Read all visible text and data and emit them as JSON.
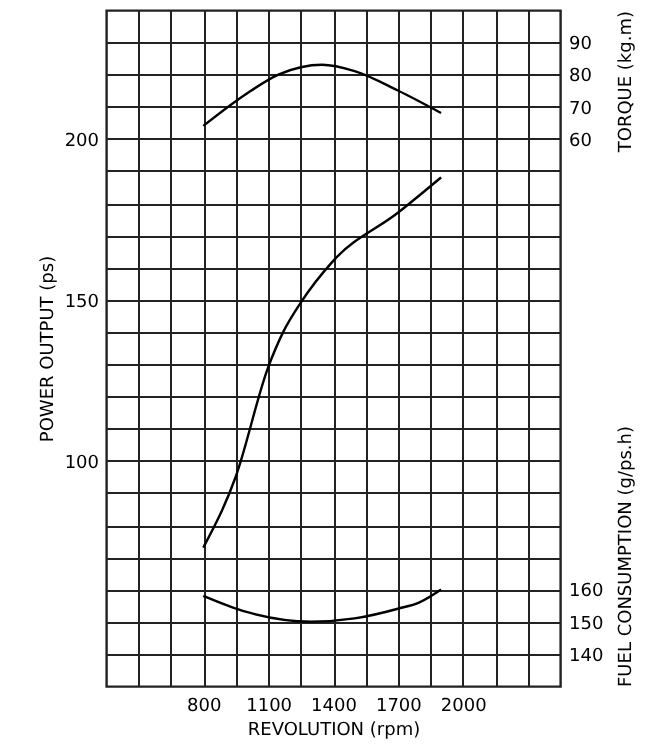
{
  "chart_data": {
    "type": "line",
    "xlabel": "REVOLUTION (rpm)",
    "ylabel": "POWER OUTPUT (ps)",
    "y2label": "TORQUE (kg.m)",
    "y3label": "FUEL CONSUMPTION (g/ps.h)",
    "xlim": [
      350,
      2450
    ],
    "xticks": [
      {
        "value": 500,
        "label": null
      },
      {
        "value": 650,
        "label": null
      },
      800,
      {
        "value": 950,
        "label": null
      },
      1100,
      {
        "value": 1250,
        "label": null
      },
      1400,
      {
        "value": 1550,
        "label": null
      },
      1700,
      {
        "value": 1850,
        "label": null
      },
      2000,
      {
        "value": 2150,
        "label": null
      },
      {
        "value": 2300,
        "label": null
      }
    ],
    "ylim": [
      30,
      240
    ],
    "yticks": [
      {
        "value": 40,
        "label": null
      },
      {
        "value": 50,
        "label": null
      },
      {
        "value": 60,
        "label": null
      },
      {
        "value": 70,
        "label": null
      },
      {
        "value": 80,
        "label": null
      },
      {
        "value": 90,
        "label": null
      },
      100,
      {
        "value": 110,
        "label": null
      },
      {
        "value": 120,
        "label": null
      },
      {
        "value": 130,
        "label": null
      },
      {
        "value": 140,
        "label": null
      },
      150,
      {
        "value": 160,
        "label": null
      },
      {
        "value": 170,
        "label": null
      },
      {
        "value": 180,
        "label": null
      },
      {
        "value": 190,
        "label": null
      },
      200,
      {
        "value": 210,
        "label": null
      },
      {
        "value": 220,
        "label": null
      },
      {
        "value": 230,
        "label": null
      }
    ],
    "y2lim": [
      -110,
      100
    ],
    "y2ticks": [
      60,
      70,
      80,
      90
    ],
    "y3lim": [
      130,
      340
    ],
    "y3ticks": [
      140,
      150,
      160
    ],
    "grid": true,
    "line_style": "solid",
    "series": [
      {
        "color": "#000000",
        "axis": "y",
        "x": [
          800,
          950,
          1100,
          1170,
          1250,
          1400,
          1700,
          1900
        ],
        "values": [
          73,
          95,
          129,
          140,
          149,
          162,
          177,
          188
        ]
      },
      {
        "color": "#000000",
        "axis": "y2",
        "x": [
          800,
          1000,
          1150,
          1350,
          1500,
          1700,
          1900
        ],
        "values": [
          64,
          74,
          80,
          83,
          81,
          75,
          68
        ]
      },
      {
        "color": "#000000",
        "axis": "y3",
        "x": [
          800,
          1000,
          1300,
          1500,
          1700,
          1800,
          1900
        ],
        "values": [
          158,
          153,
          150,
          151,
          154,
          156,
          160
        ]
      }
    ]
  }
}
